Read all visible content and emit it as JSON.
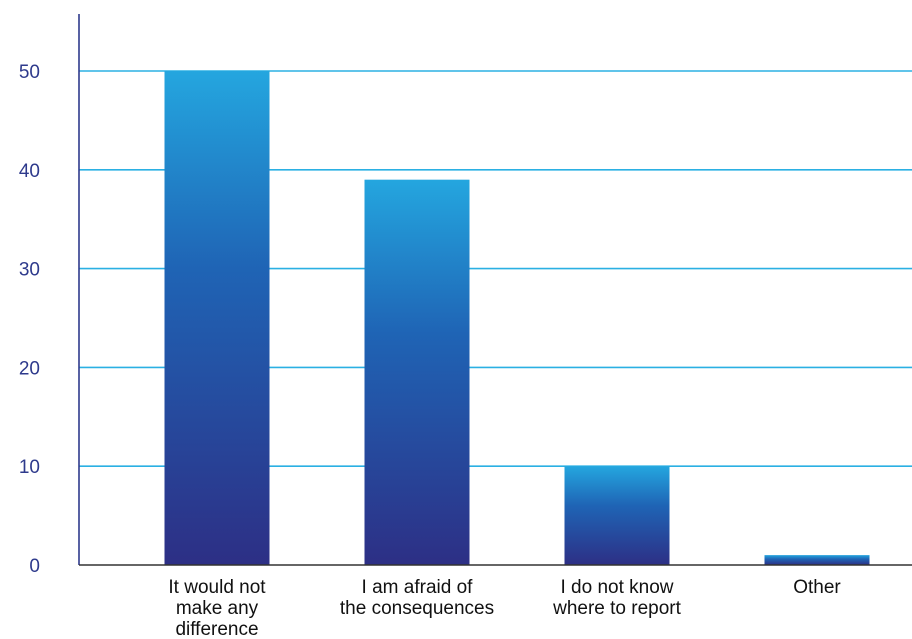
{
  "chart_data": {
    "type": "bar",
    "title": "",
    "xlabel": "",
    "ylabel": "",
    "ylim": [
      0,
      55
    ],
    "yticks": [
      0,
      10,
      20,
      30,
      40,
      50
    ],
    "grid": true,
    "categories": [
      [
        "It would not",
        "make any",
        "difference"
      ],
      [
        "I am afraid of",
        "the consequences"
      ],
      [
        "I do not know",
        "where to report"
      ],
      [
        "Other"
      ]
    ],
    "values": [
      50,
      39,
      10,
      1
    ],
    "colors": {
      "bar_top": "#24a6df",
      "bar_mid": "#1f64b5",
      "bar_bottom": "#2d2f85",
      "grid": "#2bb0e3",
      "axis": "#2e3a8c",
      "tick_text": "#2e3a8c"
    }
  }
}
